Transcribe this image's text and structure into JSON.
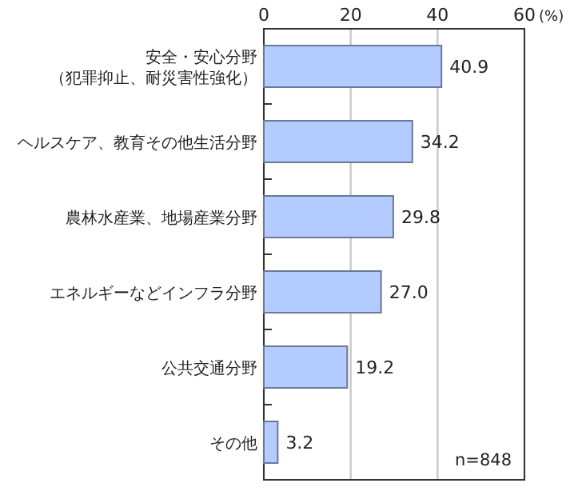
{
  "chart_data": {
    "type": "bar",
    "orientation": "horizontal",
    "xlabel": "(%)",
    "categories": [
      "安全・安心分野（犯罪抑止、耐災害性強化）",
      "ヘルスケア、教育その他生活分野",
      "農林水産業、地場産業分野",
      "エネルギーなどインフラ分野",
      "公共交通分野",
      "その他"
    ],
    "values": [
      40.9,
      34.2,
      29.8,
      27.0,
      19.2,
      3.2
    ],
    "value_labels": [
      "40.9",
      "34.2",
      "29.8",
      "27.0",
      "19.2",
      "3.2"
    ],
    "color": "#b3cbff",
    "xlim": [
      0,
      60
    ],
    "xticks": [
      0,
      20,
      40,
      60
    ],
    "grid": "x",
    "annotations": [
      "n=848"
    ]
  }
}
